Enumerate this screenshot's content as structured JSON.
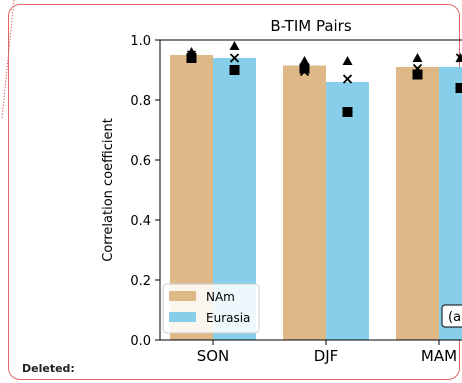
{
  "comment_label": "Deleted:",
  "chart_data": {
    "type": "bar",
    "title": "B-TIM Pairs",
    "ylabel": "Correlation coefficient",
    "xlabel": "",
    "ylim": [
      0.0,
      1.0
    ],
    "yticks": [
      "0.0",
      "0.2",
      "0.4",
      "0.6",
      "0.8",
      "1.0"
    ],
    "categories": [
      "SON",
      "DJF",
      "MAM"
    ],
    "series": [
      {
        "name": "NAm",
        "color": "#deb887",
        "values": [
          0.95,
          0.915,
          0.91
        ]
      },
      {
        "name": "Eurasia",
        "color": "#87ceeb",
        "values": [
          0.94,
          0.86,
          0.91
        ]
      }
    ],
    "markers": [
      {
        "cat": 0,
        "series": 0,
        "triangle": 0.96,
        "cross": 0.95,
        "square": 0.94
      },
      {
        "cat": 0,
        "series": 1,
        "triangle": 0.98,
        "cross": 0.94,
        "square": 0.9
      },
      {
        "cat": 1,
        "series": 0,
        "triangle": 0.93,
        "cross": 0.895,
        "square": 0.905
      },
      {
        "cat": 1,
        "series": 1,
        "triangle": 0.93,
        "cross": 0.87,
        "square": 0.76
      },
      {
        "cat": 2,
        "series": 0,
        "triangle": 0.94,
        "cross": 0.905,
        "square": 0.885
      },
      {
        "cat": 2,
        "series": 1,
        "triangle": 0.94,
        "cross": 0.94,
        "square": 0.84
      }
    ],
    "legend_location": "lower-left",
    "panel_label": "(a"
  }
}
